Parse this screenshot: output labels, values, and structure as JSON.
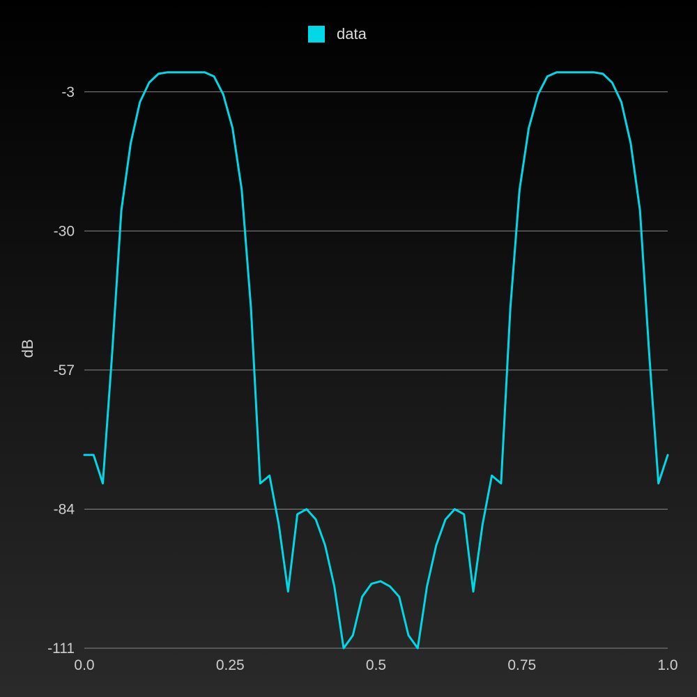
{
  "chart_data": {
    "type": "line",
    "title": "",
    "xlabel": "",
    "ylabel": "dB",
    "xlim": [
      0,
      1
    ],
    "ylim": [
      -111,
      0
    ],
    "x_ticks": [
      "0.0",
      "0.25",
      "0.5",
      "0.75",
      "1.0"
    ],
    "x_tick_values": [
      0,
      0.25,
      0.5,
      0.75,
      1
    ],
    "y_ticks": [
      "-3",
      "-30",
      "-57",
      "-84",
      "-111"
    ],
    "y_tick_values": [
      -3,
      -30,
      -57,
      -84,
      -111
    ],
    "grid": {
      "horizontal": true,
      "vertical": false
    },
    "legend": {
      "position": "top-center",
      "entries": [
        "data"
      ]
    },
    "series": [
      {
        "name": "data",
        "color": "#00d8e6",
        "x": [
          0,
          0.0159,
          0.0317,
          0.0476,
          0.0635,
          0.0794,
          0.0952,
          0.1111,
          0.127,
          0.1429,
          0.1587,
          0.1746,
          0.1905,
          0.2063,
          0.2222,
          0.2381,
          0.254,
          0.2698,
          0.2857,
          0.3016,
          0.3175,
          0.3333,
          0.3492,
          0.3651,
          0.381,
          0.3968,
          0.4127,
          0.4286,
          0.4444,
          0.4603,
          0.4762,
          0.4921,
          0.5079,
          0.5238,
          0.5397,
          0.5556,
          0.5714,
          0.5873,
          0.6032,
          0.619,
          0.6349,
          0.6508,
          0.6667,
          0.6825,
          0.6984,
          0.7143,
          0.7302,
          0.746,
          0.7619,
          0.7778,
          0.7937,
          0.8095,
          0.8254,
          0.8413,
          0.8571,
          0.873,
          0.8889,
          0.9048,
          0.9206,
          0.9365,
          0.9524,
          0.9683,
          0.9841,
          1.0
        ],
        "y": [
          -73.5,
          -73.5,
          -79,
          -54,
          -26,
          -13,
          -5,
          -1.2,
          0.5,
          0.8,
          0.8,
          0.8,
          0.8,
          0.8,
          0,
          -3.5,
          -10,
          -22,
          -45,
          -79,
          -77.5,
          -87,
          -100,
          -85,
          -84,
          -86,
          -91,
          -99,
          -111,
          -108.5,
          -101,
          -98.5,
          -98,
          -99,
          -101,
          -108.5,
          -111,
          -99,
          -91,
          -86,
          -84,
          -85,
          -100,
          -87,
          -77.5,
          -79,
          -45,
          -22,
          -10,
          -3.5,
          0,
          0.8,
          0.8,
          0.8,
          0.8,
          0.8,
          0.5,
          -1.2,
          -5,
          -13,
          -26,
          -54,
          -79,
          -73.5
        ]
      }
    ]
  }
}
